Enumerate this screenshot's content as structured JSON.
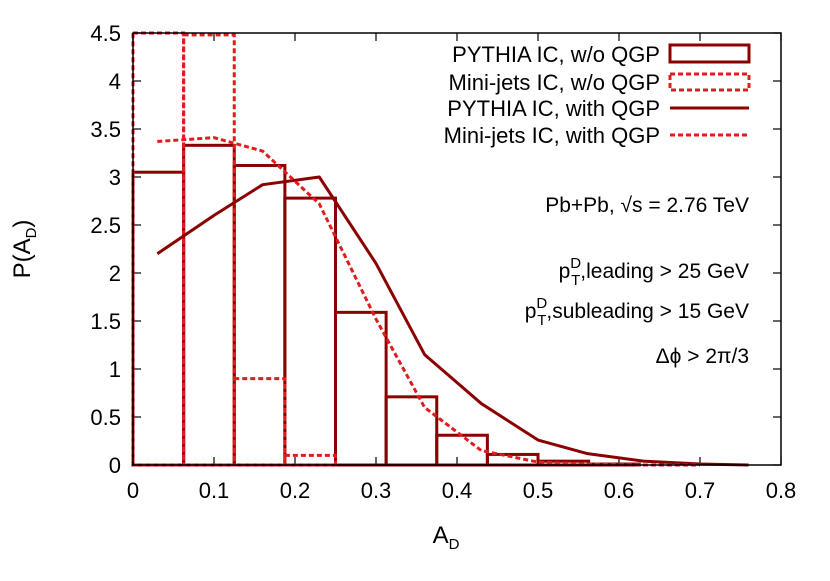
{
  "chart_data": {
    "type": "histogram+line",
    "xlabel": "A",
    "xlabel_sub": "D",
    "ylabel": "P(A",
    "ylabel_sub": "D",
    "ylabel_close": ")",
    "xlim": [
      0,
      0.8
    ],
    "ylim": [
      0,
      4.5
    ],
    "x_ticks": [
      "0",
      "0.1",
      "0.2",
      "0.3",
      "0.4",
      "0.5",
      "0.6",
      "0.7",
      "0.8"
    ],
    "x_tick_values": [
      0,
      0.1,
      0.2,
      0.3,
      0.4,
      0.5,
      0.6,
      0.7,
      0.8
    ],
    "y_ticks": [
      "0",
      "0.5",
      "1",
      "1.5",
      "2",
      "2.5",
      "3",
      "3.5",
      "4",
      "4.5"
    ],
    "y_tick_values": [
      0,
      0.5,
      1,
      1.5,
      2,
      2.5,
      3,
      3.5,
      4,
      4.5
    ],
    "bin_edges": [
      0,
      0.0625,
      0.125,
      0.1875,
      0.25,
      0.3125,
      0.375,
      0.4375,
      0.5,
      0.5625,
      0.625,
      0.6875,
      0.75
    ],
    "series": [
      {
        "name": "PYTHIA IC, w/o QGP",
        "kind": "hist",
        "dashed": false,
        "color": "#8b0000",
        "values": [
          3.05,
          3.33,
          3.12,
          2.78,
          1.59,
          0.71,
          0.31,
          0.11,
          0.04,
          0.01,
          0.0,
          0.0
        ]
      },
      {
        "name": "Mini-jets IC, w/o QGP",
        "kind": "hist",
        "dashed": true,
        "color": "#e01c1c",
        "values": [
          4.55,
          4.48,
          0.9,
          0.1,
          0.0,
          0.0,
          0.0,
          0.0,
          0.0,
          0.0,
          0.0,
          0.0
        ]
      },
      {
        "name": "PYTHIA IC, with QGP",
        "kind": "line",
        "dashed": false,
        "color": "#8b0000",
        "x": [
          0.03,
          0.1,
          0.16,
          0.23,
          0.3,
          0.36,
          0.43,
          0.5,
          0.56,
          0.63,
          0.7,
          0.76
        ],
        "y": [
          2.2,
          2.6,
          2.92,
          3.0,
          2.1,
          1.15,
          0.64,
          0.26,
          0.12,
          0.04,
          0.01,
          0.0
        ]
      },
      {
        "name": "Mini-jets IC, with QGP",
        "kind": "line",
        "dashed": true,
        "color": "#e01c1c",
        "x": [
          0.03,
          0.1,
          0.16,
          0.23,
          0.3,
          0.36,
          0.43,
          0.5,
          0.56,
          0.63,
          0.7
        ],
        "y": [
          3.37,
          3.41,
          3.27,
          2.72,
          1.52,
          0.6,
          0.15,
          0.03,
          0.01,
          0.0,
          0.0
        ]
      }
    ],
    "legend_position": "top-right",
    "annotations": {
      "system": "Pb+Pb, √s = 2.76 TeV",
      "lead_p": "p",
      "lead_sup": "D",
      "lead_sub": "T",
      "lead_rest": ",leading > 25 GeV",
      "sublead_p": "p",
      "sublead_sup": "D",
      "sublead_sub": "T",
      "sublead_rest": ",subleading > 15 GeV",
      "dphi": "Δϕ > 2π/3"
    },
    "grid": false
  }
}
